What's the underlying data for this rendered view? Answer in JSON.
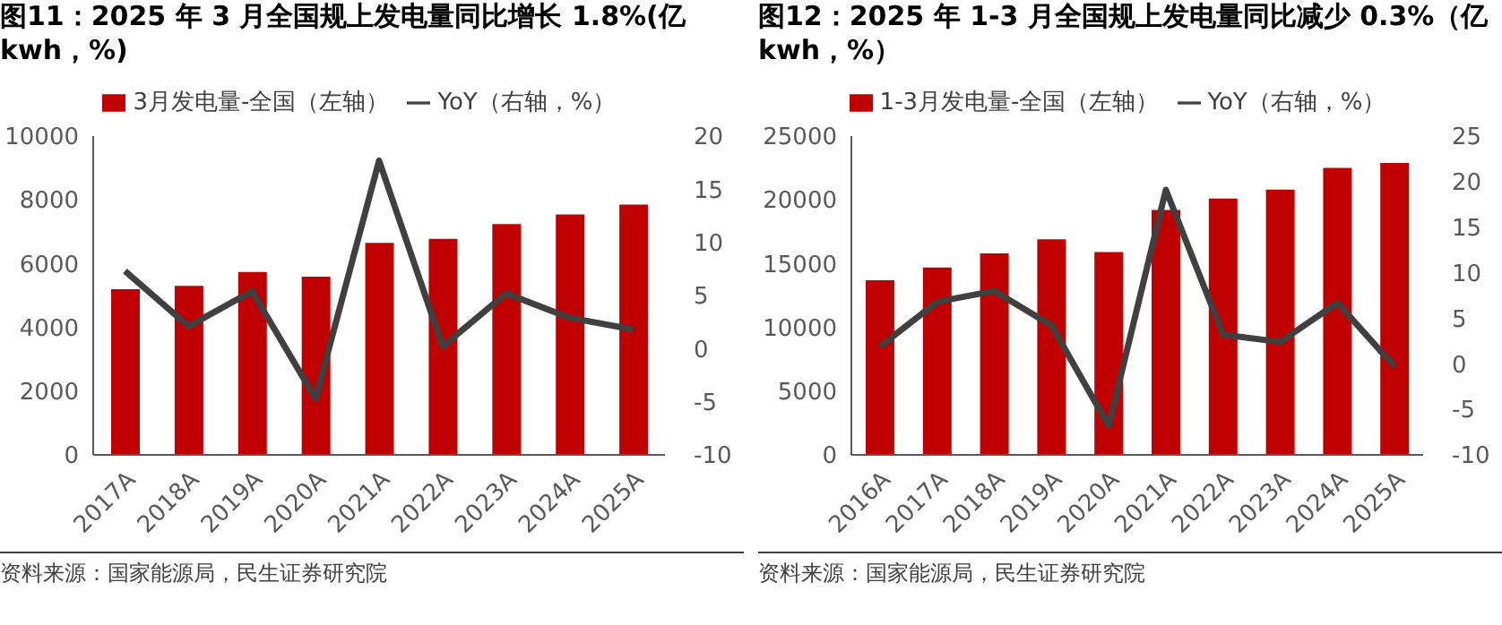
{
  "chart_data": [
    {
      "type": "bar",
      "title": "图11：2025 年 3 月全国规上发电量同比增长 1.8%(亿 kwh，%)",
      "categories": [
        "2017A",
        "2018A",
        "2019A",
        "2020A",
        "2021A",
        "2022A",
        "2023A",
        "2024A",
        "2025A"
      ],
      "series": [
        {
          "name": "3月发电量-全国（左轴）",
          "color": "#c00000",
          "values": [
            5200,
            5300,
            5740,
            5590,
            6650,
            6780,
            7240,
            7540,
            7850
          ]
        },
        {
          "name": "YoY（右轴，%）",
          "type": "line",
          "axis": "y2",
          "color": "#404040",
          "values": [
            7.3,
            2.1,
            5.4,
            -4.7,
            17.7,
            0.2,
            5.2,
            2.9,
            1.8
          ]
        }
      ],
      "ylim": [
        0,
        10000
      ],
      "yticks": [
        0,
        2000,
        4000,
        6000,
        8000,
        10000
      ],
      "y2lim": [
        -10,
        20
      ],
      "y2ticks": [
        -10,
        -5,
        0,
        5,
        10,
        15,
        20
      ],
      "legend": "top",
      "marker": "none",
      "grid": false,
      "annotations": [
        "资料来源：国家能源局，民生证券研究院"
      ]
    },
    {
      "type": "bar",
      "title": "图12：2025 年 1-3 月全国规上发电量同比减少 0.3%（亿 kwh，%）",
      "categories": [
        "2016A",
        "2017A",
        "2018A",
        "2019A",
        "2020A",
        "2021A",
        "2022A",
        "2023A",
        "2024A",
        "2025A"
      ],
      "series": [
        {
          "name": "1-3月发电量-全国（左轴）",
          "color": "#c00000",
          "values": [
            13700,
            14700,
            15800,
            16900,
            15900,
            19200,
            20100,
            20800,
            22500,
            22900
          ]
        },
        {
          "name": "YoY（右轴，%）",
          "type": "line",
          "axis": "y2",
          "color": "#404040",
          "values": [
            1.9,
            6.8,
            8.0,
            4.2,
            -6.8,
            19.1,
            3.2,
            2.4,
            6.7,
            -0.3
          ]
        }
      ],
      "ylim": [
        0,
        25000
      ],
      "yticks": [
        0,
        5000,
        10000,
        15000,
        20000,
        25000
      ],
      "y2lim": [
        -10,
        25
      ],
      "y2ticks": [
        -10,
        -5,
        0,
        5,
        10,
        15,
        20,
        25
      ],
      "legend": "top",
      "marker": "none",
      "grid": false,
      "annotations": [
        "资料来源：国家能源局，民生证券研究院"
      ]
    }
  ]
}
